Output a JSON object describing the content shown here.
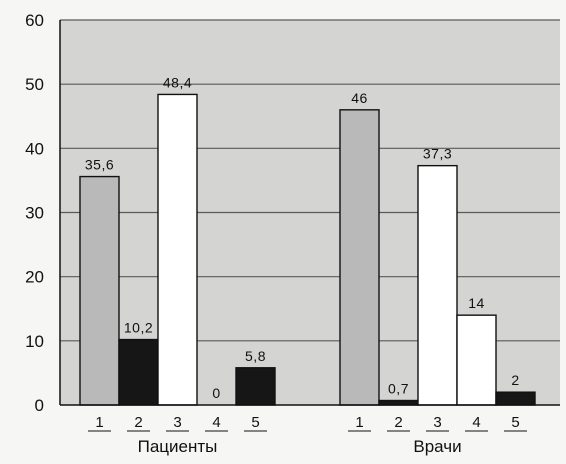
{
  "chart_data": {
    "type": "bar",
    "title": "",
    "xlabel": "",
    "ylabel": "",
    "ylim": [
      0,
      60
    ],
    "yticks": [
      "0",
      "10",
      "20",
      "30",
      "40",
      "50",
      "60"
    ],
    "grid": true,
    "legend": "none",
    "groups": [
      {
        "name": "Пациенты",
        "categories": [
          "1",
          "2",
          "3",
          "4",
          "5"
        ],
        "values": [
          35.6,
          10.2,
          48.4,
          0,
          5.8
        ],
        "value_labels": [
          "35,6",
          "10,2",
          "48,4",
          "0",
          "5,8"
        ]
      },
      {
        "name": "Врачи",
        "categories": [
          "1",
          "2",
          "3",
          "4",
          "5"
        ],
        "values": [
          46,
          0.7,
          37.3,
          14,
          2
        ],
        "value_labels": [
          "46",
          "0,7",
          "37,3",
          "14",
          "2"
        ]
      }
    ],
    "bar_fills": [
      "#b9b9b9",
      "#161616",
      "#ffffff",
      "#ffffff",
      "#161616"
    ],
    "colors": {
      "plot_background": "#d4d4d2",
      "grid": "#5a5a5a",
      "bar_outline": "#111111"
    }
  }
}
